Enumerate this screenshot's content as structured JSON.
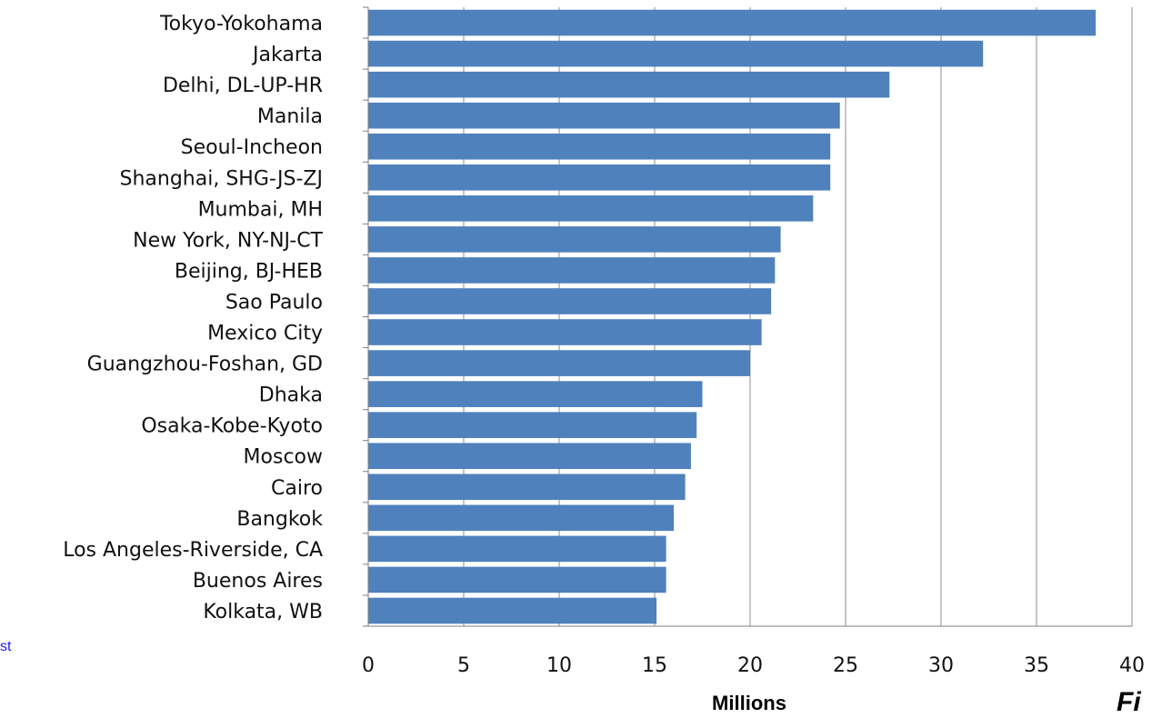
{
  "side_text": "st",
  "corner_text": "Fi",
  "chart_data": {
    "type": "bar",
    "orientation": "horizontal",
    "categories": [
      "Tokyo-Yokohama",
      "Jakarta",
      "Delhi, DL-UP-HR",
      "Manila",
      "Seoul-Incheon",
      "Shanghai, SHG-JS-ZJ",
      "Mumbai, MH",
      "New York, NY-NJ-CT",
      "Beijing, BJ-HEB",
      "Sao Paulo",
      "Mexico City",
      "Guangzhou-Foshan, GD",
      "Dhaka",
      "Osaka-Kobe-Kyoto",
      "Moscow",
      "Cairo",
      "Bangkok",
      "Los Angeles-Riverside, CA",
      "Buenos Aires",
      "Kolkata, WB"
    ],
    "values": [
      38.1,
      32.2,
      27.3,
      24.7,
      24.2,
      24.2,
      23.3,
      21.6,
      21.3,
      21.1,
      20.6,
      20.0,
      17.5,
      17.2,
      16.9,
      16.6,
      16.0,
      15.6,
      15.6,
      15.1
    ],
    "xlabel": "Millions",
    "ylabel": "",
    "xlim": [
      0,
      40
    ],
    "xticks": [
      0,
      5,
      10,
      15,
      20,
      25,
      30,
      35,
      40
    ],
    "grid": true,
    "bar_color": "#4f81bd",
    "grid_color": "#8c8c8c"
  }
}
